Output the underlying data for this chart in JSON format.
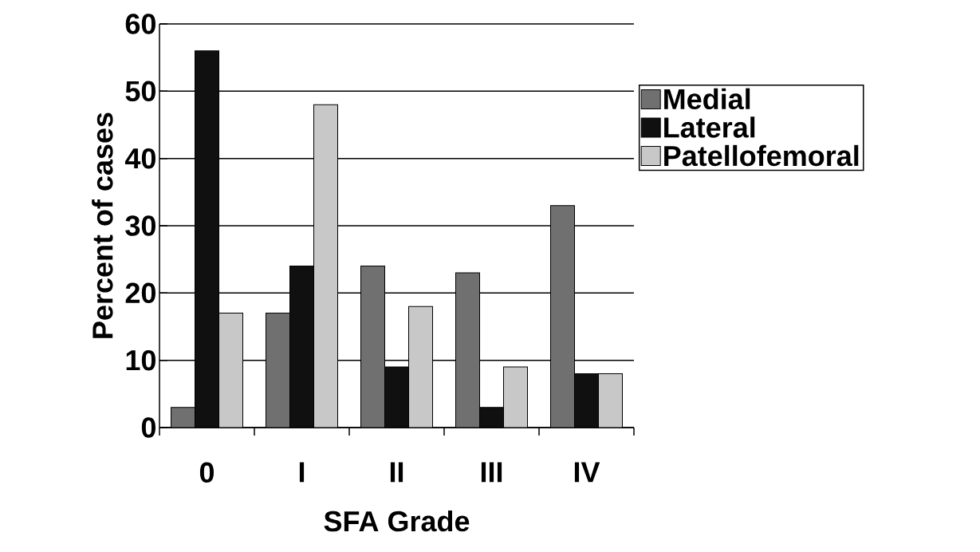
{
  "chart_data": {
    "type": "bar",
    "xlabel": "SFA Grade",
    "ylabel": "Percent of cases",
    "categories": [
      "0",
      "I",
      "II",
      "III",
      "IV"
    ],
    "series": [
      {
        "name": "Medial",
        "color": "#707070",
        "values": [
          3,
          17,
          24,
          23,
          33
        ]
      },
      {
        "name": "Lateral",
        "color": "#101010",
        "values": [
          56,
          24,
          9,
          3,
          8
        ]
      },
      {
        "name": "Patellofemoral",
        "color": "#c8c8c8",
        "values": [
          17,
          48,
          18,
          9,
          8
        ]
      }
    ],
    "ylim": [
      0,
      60
    ],
    "yticks": [
      0,
      10,
      20,
      30,
      40,
      50,
      60
    ],
    "grid": "y",
    "legend": "right"
  }
}
